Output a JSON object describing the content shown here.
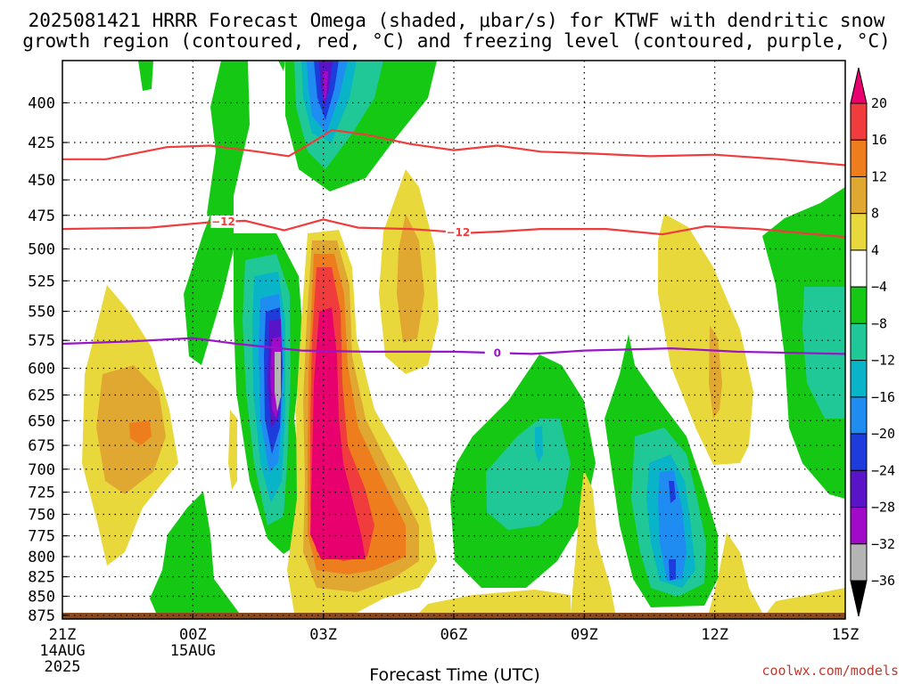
{
  "chart_data": {
    "type": "contour",
    "title_line1": "2025081421 HRRR Forecast Omega (shaded, μbar/s) for KTWF with dendritic snow",
    "title_line2": "growth region (contoured, red, °C) and freezing level (contoured, purple, °C)",
    "xlabel": "Forecast Time (UTC)",
    "credit": "coolwx.com/models",
    "x_ticks": [
      {
        "label": "21Z",
        "sub1": "14AUG",
        "sub2": "2025",
        "hour": 0
      },
      {
        "label": "00Z",
        "sub1": "15AUG",
        "sub2": "",
        "hour": 3
      },
      {
        "label": "03Z",
        "sub1": "",
        "sub2": "",
        "hour": 6
      },
      {
        "label": "06Z",
        "sub1": "",
        "sub2": "",
        "hour": 9
      },
      {
        "label": "09Z",
        "sub1": "",
        "sub2": "",
        "hour": 12
      },
      {
        "label": "12Z",
        "sub1": "",
        "sub2": "",
        "hour": 15
      },
      {
        "label": "15Z",
        "sub1": "",
        "sub2": "",
        "hour": 18
      }
    ],
    "x_range": [
      0,
      18
    ],
    "y_ticks": [
      400,
      425,
      450,
      475,
      500,
      525,
      550,
      575,
      600,
      625,
      650,
      675,
      700,
      725,
      750,
      775,
      800,
      825,
      850,
      875
    ],
    "y_range": [
      375,
      880
    ],
    "y_scale": "log-pressure",
    "grid": true,
    "colorbar": {
      "ticks": [
        "20",
        "16",
        "12",
        "8",
        "4",
        "−4",
        "−8",
        "−12",
        "−16",
        "−20",
        "−24",
        "−28",
        "−32",
        "−36"
      ],
      "colors": [
        "#e8006e",
        "#f03c3c",
        "#ee7d1e",
        "#e0a830",
        "#e8d83c",
        "#ffffff",
        "#14c814",
        "#1fc896",
        "#0ab4c8",
        "#1e8cf0",
        "#1e3cdc",
        "#5a14c8",
        "#a00ac8",
        "#b4b4b4"
      ]
    },
    "snow_growth_isotherms": [
      {
        "label": "",
        "points": [
          [
            0,
            436
          ],
          [
            1,
            436
          ],
          [
            2.4,
            428
          ],
          [
            3.4,
            427
          ],
          [
            4.5,
            431
          ],
          [
            5.2,
            434
          ],
          [
            5.8,
            424
          ],
          [
            6.2,
            417
          ],
          [
            7,
            420
          ],
          [
            8,
            426
          ],
          [
            9,
            430
          ],
          [
            10,
            427
          ],
          [
            11,
            431
          ],
          [
            12,
            432
          ],
          [
            13.5,
            434
          ],
          [
            15,
            433
          ],
          [
            16.5,
            436
          ],
          [
            18,
            440
          ]
        ]
      },
      {
        "label": "−12",
        "points": [
          [
            0,
            485
          ],
          [
            2,
            484
          ],
          [
            3.4,
            480
          ],
          [
            4.2,
            479
          ],
          [
            5.1,
            486
          ],
          [
            6,
            478
          ],
          [
            6.8,
            484
          ],
          [
            8,
            485
          ],
          [
            9.3,
            488
          ],
          [
            10,
            487
          ],
          [
            11,
            485
          ],
          [
            12.5,
            485
          ],
          [
            13.8,
            489
          ],
          [
            14.8,
            483
          ],
          [
            16,
            485
          ],
          [
            18,
            491
          ]
        ]
      }
    ],
    "freezing_level": {
      "label": "0",
      "points": [
        [
          0,
          578
        ],
        [
          1.5,
          576
        ],
        [
          3,
          573
        ],
        [
          4,
          578
        ],
        [
          5.5,
          584
        ],
        [
          7,
          585
        ],
        [
          9,
          585
        ],
        [
          10.8,
          587
        ],
        [
          12,
          584
        ],
        [
          14,
          582
        ],
        [
          15.5,
          585
        ],
        [
          18,
          587
        ]
      ]
    },
    "surface": "terrain"
  }
}
